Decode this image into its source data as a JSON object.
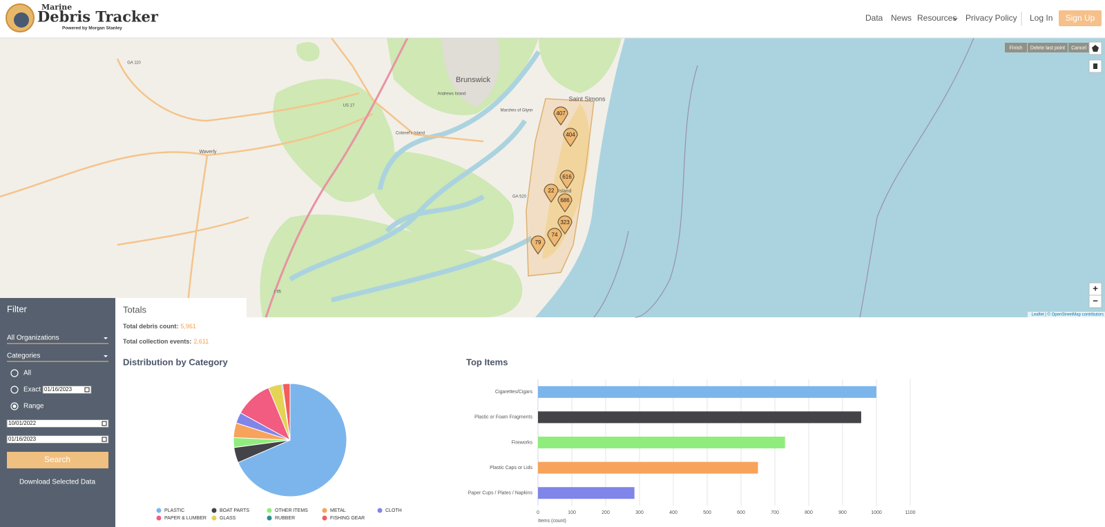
{
  "header": {
    "logo": {
      "line1": "Marine",
      "line2": "Debris Tracker",
      "tagline": "Powered by Morgan Stanley"
    },
    "nav": [
      "Data",
      "News",
      "Resources",
      "Privacy Policy"
    ],
    "login": "Log In",
    "signup": "Sign Up"
  },
  "map": {
    "draw_buttons": [
      "Finish",
      "Delete last point",
      "Cancel"
    ],
    "markers": [
      407,
      404,
      616,
      22,
      686,
      323,
      74,
      79
    ],
    "labels": [
      "Brunswick",
      "Saint Simons",
      "Waverly",
      "Colonel's Island",
      "Andrews Island",
      "Marshes of Glynn",
      "Island",
      "GA 110",
      "US 17",
      "GA 520",
      "I 95"
    ],
    "zoom_in": "+",
    "zoom_out": "−",
    "attribution": "Leaflet | © OpenStreetMap contributors"
  },
  "filter": {
    "title": "Filter",
    "organization": "All Organizations",
    "categories": "Categories",
    "options": [
      "All",
      "Exact",
      "Range"
    ],
    "exact_date": "01/16/2023",
    "range_start": "10/01/2022",
    "range_end": "01/16/2023",
    "search": "Search",
    "download": "Download Selected Data"
  },
  "totals": {
    "title": "Totals",
    "debris_label": "Total debris count:",
    "debris_value": "5,961",
    "events_label": "Total collection events:",
    "events_value": "2,611"
  },
  "chart_data": [
    {
      "type": "pie",
      "title": "Distribution by Category",
      "categories": [
        "PLASTIC",
        "BOAT PARTS",
        "OTHER ITEMS",
        "METAL",
        "CLOTH",
        "PAPER & LUMBER",
        "GLASS",
        "RUBBER",
        "FISHING GEAR"
      ],
      "values": [
        68.5,
        4.4,
        2.8,
        4.2,
        3.1,
        10.8,
        3.8,
        0.3,
        2.1
      ],
      "colors": [
        "#7cb5ec",
        "#434348",
        "#90ed7d",
        "#f7a35c",
        "#8085e9",
        "#f15c80",
        "#e4d354",
        "#2b908f",
        "#f45b5b"
      ]
    },
    {
      "type": "bar",
      "title": "Top Items",
      "categories": [
        "Cigarettes/Cigars",
        "Plastic or Foam Fragments",
        "Fireworks",
        "Plastic Caps or Lids",
        "Paper Cups / Plates / Napkins"
      ],
      "values": [
        1000,
        955,
        730,
        650,
        285
      ],
      "colors": [
        "#7cb5ec",
        "#434348",
        "#90ed7d",
        "#f7a35c",
        "#8085e9"
      ],
      "xlim": [
        0,
        1100
      ],
      "xticks": [
        0,
        100,
        200,
        300,
        400,
        500,
        600,
        700,
        800,
        900,
        1000,
        1100
      ],
      "xlabel": "Items (count)",
      "grid": true
    }
  ]
}
